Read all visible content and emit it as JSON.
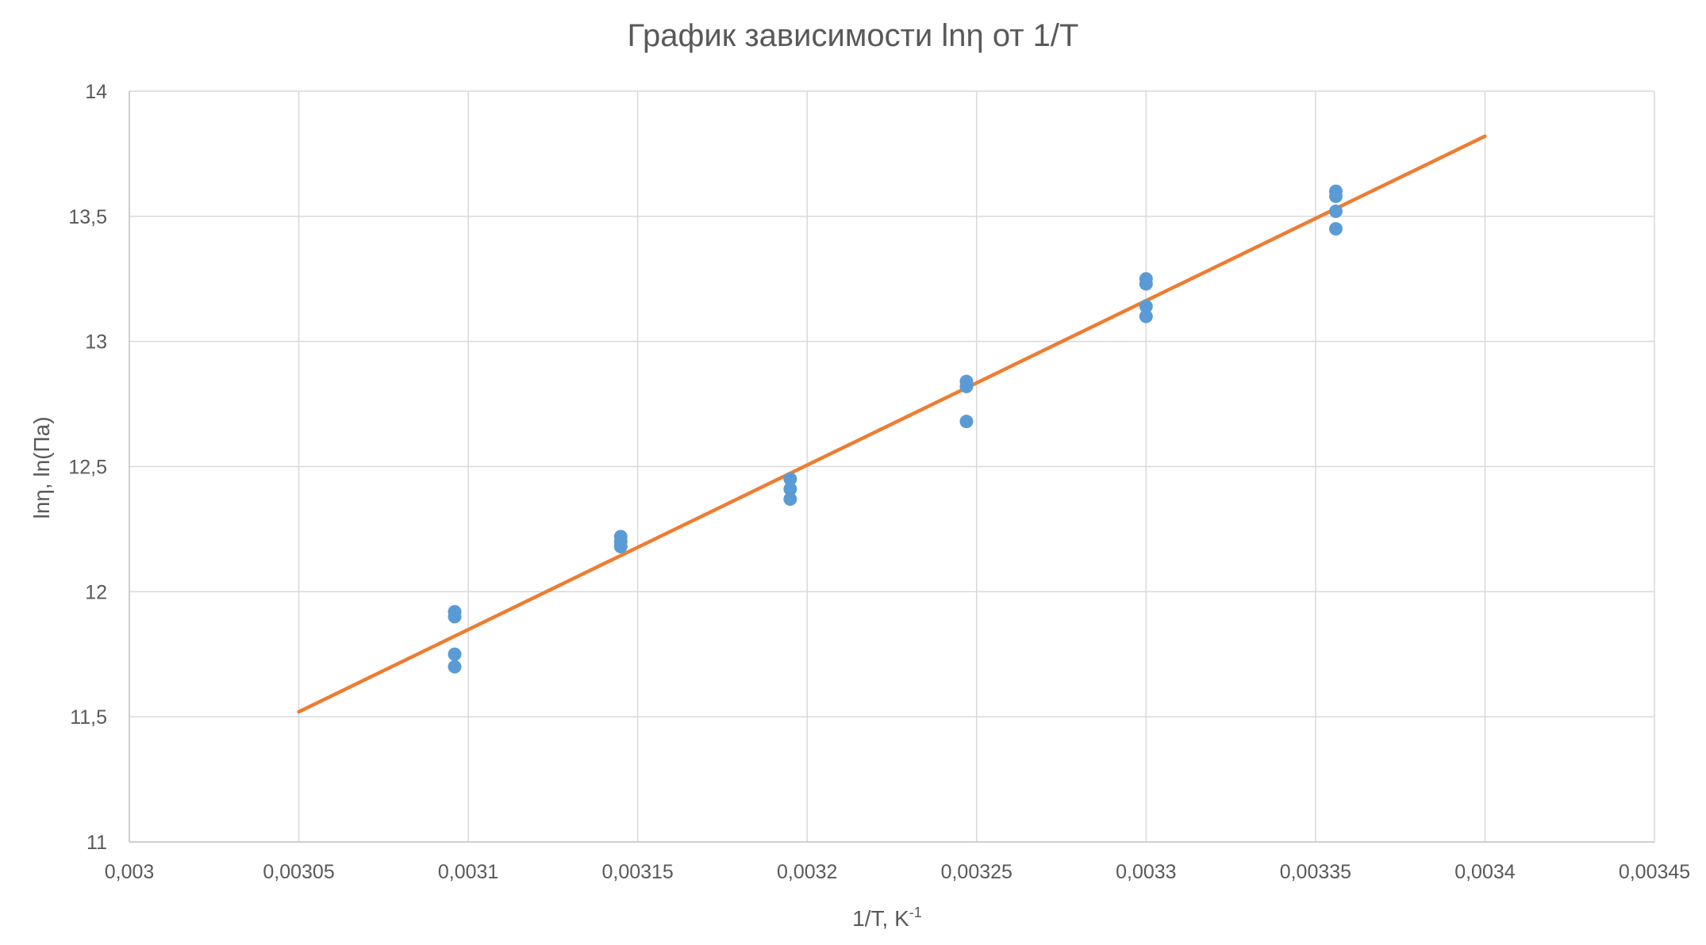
{
  "chart_data": {
    "type": "scatter",
    "title": "График зависимости lnη от 1/T",
    "xlabel": "1/T, K",
    "xlabel_sup": "-1",
    "ylabel": "lnη, ln(Па)",
    "xlim": [
      0.003,
      0.00345
    ],
    "ylim": [
      11,
      14
    ],
    "x_ticks": [
      0.003,
      0.00305,
      0.0031,
      0.00315,
      0.0032,
      0.00325,
      0.0033,
      0.00335,
      0.0034,
      0.00345
    ],
    "x_tick_labels": [
      "0,003",
      "0,00305",
      "0,0031",
      "0,00315",
      "0,0032",
      "0,00325",
      "0,0033",
      "0,00335",
      "0,0034",
      "0,00345"
    ],
    "y_ticks": [
      11,
      11.5,
      12,
      12.5,
      13,
      13.5,
      14
    ],
    "y_tick_labels": [
      "11",
      "11,5",
      "12",
      "12,5",
      "13",
      "13,5",
      "14"
    ],
    "grid": true,
    "legend": "none",
    "series": [
      {
        "type": "scatter",
        "color": "#5b9bd5",
        "points": [
          [
            0.003096,
            11.92
          ],
          [
            0.003096,
            11.9
          ],
          [
            0.003096,
            11.75
          ],
          [
            0.003096,
            11.7
          ],
          [
            0.003145,
            12.22
          ],
          [
            0.003145,
            12.2
          ],
          [
            0.003145,
            12.18
          ],
          [
            0.003195,
            12.45
          ],
          [
            0.003195,
            12.41
          ],
          [
            0.003195,
            12.37
          ],
          [
            0.003247,
            12.84
          ],
          [
            0.003247,
            12.82
          ],
          [
            0.003247,
            12.68
          ],
          [
            0.0033,
            13.25
          ],
          [
            0.0033,
            13.23
          ],
          [
            0.0033,
            13.14
          ],
          [
            0.0033,
            13.1
          ],
          [
            0.003356,
            13.6
          ],
          [
            0.003356,
            13.58
          ],
          [
            0.003356,
            13.52
          ],
          [
            0.003356,
            13.45
          ]
        ]
      },
      {
        "type": "line",
        "color": "#ed7d31",
        "points": [
          [
            0.00305,
            11.52
          ],
          [
            0.0034,
            13.82
          ]
        ]
      }
    ]
  }
}
